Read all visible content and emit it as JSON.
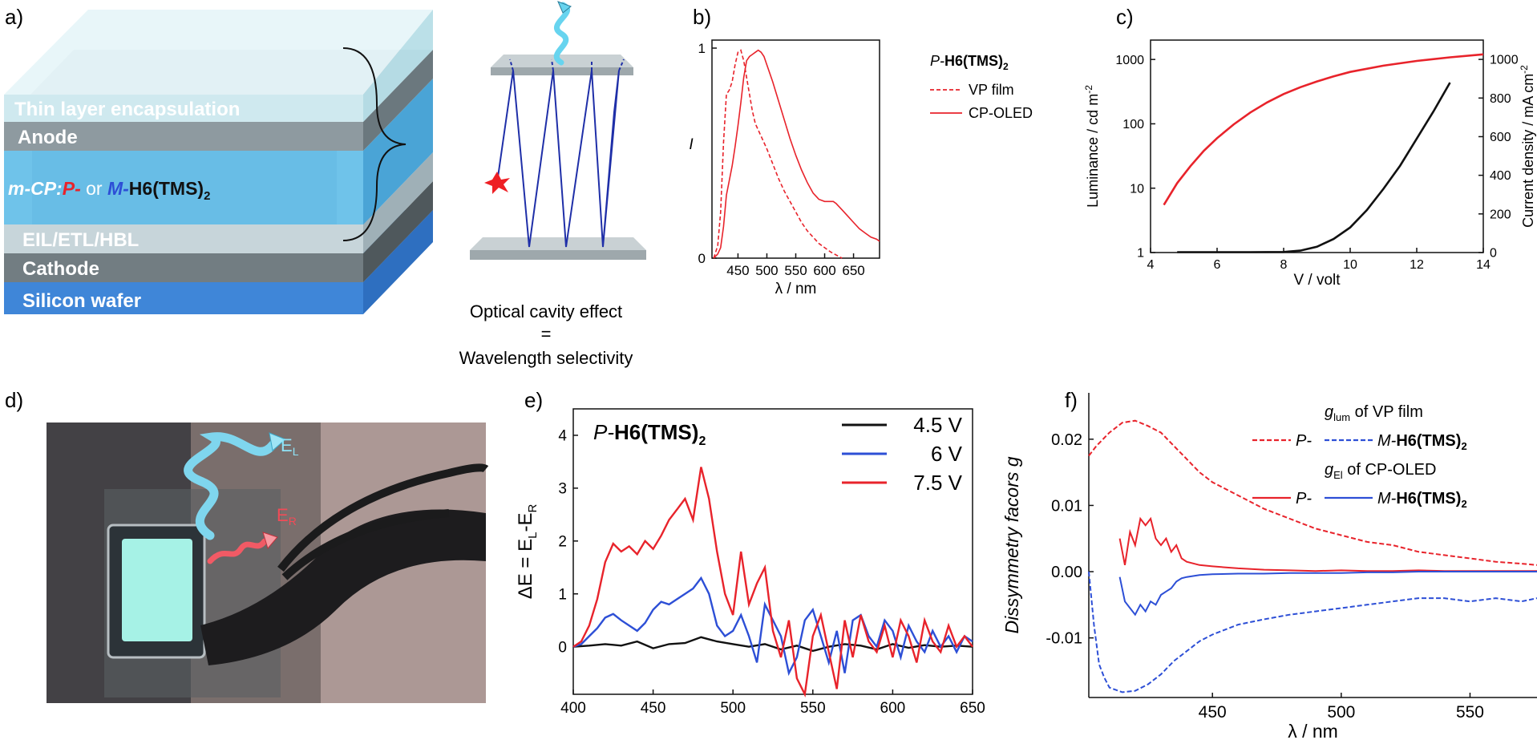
{
  "panel_labels": [
    "a)",
    "b)",
    "c)",
    "d)",
    "e)",
    "f)"
  ],
  "panel_a": {
    "layers": [
      {
        "label": "Thin layer encapsulation",
        "color": "#cfe9ef"
      },
      {
        "label": "Anode",
        "color": "#8e9aa0"
      },
      {
        "label": "m-CP:P- or M-H6(TMS)2",
        "color": "#6fc3ea"
      },
      {
        "label": "EIL/ETL/HBL",
        "color": "#c7d5da"
      },
      {
        "label": "Cathode",
        "color": "#727d82"
      },
      {
        "label": "Silicon wafer",
        "color": "#3f86d8"
      }
    ],
    "emitter": {
      "prefix": "m-CP:",
      "p": "P-",
      "or": " or ",
      "m": "M-",
      "name": "H6(TMS)",
      "sub": "2"
    },
    "caption_line1": "Optical cavity effect",
    "caption_line2": "=",
    "caption_line3": "Wavelength selectivity"
  },
  "panel_d": {
    "el_label": "E",
    "el_sub": "L",
    "er_label": "E",
    "er_sub": "R"
  },
  "colors": {
    "red": "#e8232b",
    "blue": "#2d4fd6",
    "black": "#111111",
    "cyan": "#67d4ef"
  },
  "chart_data": [
    {
      "panel": "b",
      "type": "line",
      "xlabel": "λ / nm",
      "ylabel": "I",
      "xlim": [
        405,
        695
      ],
      "ylim": [
        0,
        1
      ],
      "xticks": [
        450,
        500,
        550,
        600,
        650
      ],
      "yticks": [
        0,
        1
      ],
      "legend": {
        "title_prefix": "P-",
        "title_main": "H6(TMS)",
        "title_sub": "2",
        "placement": "top-right"
      },
      "series": [
        {
          "name": "VP film",
          "style": "dashed",
          "color": "#e8232b",
          "x": [
            408,
            415,
            420,
            425,
            430,
            435,
            440,
            445,
            450,
            455,
            460,
            465,
            470,
            475,
            480,
            490,
            500,
            510,
            520,
            530,
            540,
            550,
            560,
            570,
            580,
            590,
            600,
            610,
            620,
            630
          ],
          "y": [
            0,
            0.06,
            0.22,
            0.55,
            0.78,
            0.8,
            0.84,
            0.92,
            0.98,
            0.99,
            0.94,
            0.86,
            0.78,
            0.7,
            0.64,
            0.58,
            0.52,
            0.45,
            0.38,
            0.32,
            0.27,
            0.22,
            0.17,
            0.13,
            0.1,
            0.07,
            0.05,
            0.03,
            0.015,
            0
          ]
        },
        {
          "name": "CP-OLED",
          "style": "solid",
          "color": "#e8232b",
          "x": [
            408,
            415,
            420,
            425,
            430,
            435,
            440,
            445,
            450,
            455,
            460,
            465,
            470,
            475,
            480,
            485,
            490,
            495,
            500,
            510,
            520,
            530,
            540,
            550,
            560,
            570,
            580,
            590,
            600,
            610,
            615,
            620,
            630,
            640,
            650,
            660,
            670,
            680,
            690,
            695
          ],
          "y": [
            0,
            0.02,
            0.05,
            0.15,
            0.3,
            0.37,
            0.44,
            0.53,
            0.63,
            0.74,
            0.86,
            0.94,
            0.96,
            0.97,
            0.98,
            0.99,
            0.98,
            0.96,
            0.92,
            0.84,
            0.75,
            0.66,
            0.57,
            0.49,
            0.42,
            0.36,
            0.31,
            0.28,
            0.27,
            0.27,
            0.27,
            0.26,
            0.23,
            0.2,
            0.17,
            0.14,
            0.12,
            0.1,
            0.09,
            0.08
          ]
        }
      ]
    },
    {
      "panel": "c",
      "type": "line",
      "xlabel": "V / volt",
      "ylabel_left": "Luminance / cd m",
      "ylabel_left_sup": "-2",
      "ylabel_right": "Current density / mA cm",
      "ylabel_right_sup": "-2",
      "xlim": [
        4,
        14
      ],
      "ylim_left": [
        1,
        2000
      ],
      "yscale_left": "log",
      "ylim_right": [
        0,
        1100
      ],
      "xticks": [
        4,
        6,
        8,
        10,
        12,
        14
      ],
      "yticks_left": [
        1,
        10,
        100,
        1000
      ],
      "yticks_right": [
        0,
        200,
        400,
        600,
        800,
        1000
      ],
      "series": [
        {
          "name": "Luminance",
          "axis": "left",
          "color": "#e8232b",
          "x": [
            4.4,
            4.8,
            5.2,
            5.6,
            6,
            6.5,
            7,
            7.5,
            8,
            8.5,
            9,
            9.5,
            10,
            11,
            12,
            13,
            14
          ],
          "y": [
            5.5,
            12,
            22,
            38,
            60,
            98,
            150,
            215,
            290,
            370,
            455,
            545,
            640,
            800,
            950,
            1080,
            1200
          ]
        },
        {
          "name": "Current density",
          "axis": "right",
          "color": "#111111",
          "x": [
            4.8,
            6,
            7,
            8,
            8.5,
            9,
            9.5,
            10,
            10.5,
            11,
            11.5,
            12,
            12.5,
            13
          ],
          "y": [
            2,
            2,
            2,
            3,
            10,
            30,
            70,
            130,
            220,
            330,
            450,
            590,
            730,
            880
          ]
        }
      ]
    },
    {
      "panel": "e",
      "type": "line",
      "xlabel": "",
      "ylabel": "ΔE = E_L - E_R",
      "xlim": [
        400,
        650
      ],
      "ylim": [
        -0.9,
        4.5
      ],
      "xticks": [
        400,
        450,
        500,
        550,
        600,
        650
      ],
      "yticks": [
        0,
        1,
        2,
        3,
        4
      ],
      "title_prefix": "P-",
      "title_main": "H6(TMS)",
      "title_sub": "2",
      "legend_placement": "top-right",
      "series": [
        {
          "name": "4.5 V",
          "color": "#111111",
          "x": [
            400,
            410,
            420,
            430,
            440,
            450,
            460,
            470,
            480,
            490,
            500,
            510,
            520,
            530,
            540,
            550,
            560,
            570,
            580,
            590,
            600,
            610,
            620,
            630,
            640,
            650
          ],
          "y": [
            0,
            0.02,
            0.05,
            0.02,
            0.1,
            -0.03,
            0.05,
            0.07,
            0.18,
            0.1,
            0.05,
            0.0,
            0.05,
            -0.05,
            0.02,
            -0.08,
            0.0,
            0.05,
            0.02,
            -0.05,
            0.05,
            -0.02,
            0.03,
            0.0,
            0.02,
            0.0
          ]
        },
        {
          "name": "6 V",
          "color": "#2d4fd6",
          "x": [
            400,
            405,
            410,
            415,
            420,
            425,
            430,
            435,
            440,
            445,
            450,
            455,
            460,
            465,
            470,
            475,
            480,
            485,
            490,
            495,
            500,
            505,
            510,
            515,
            520,
            525,
            530,
            535,
            540,
            545,
            550,
            555,
            560,
            565,
            570,
            575,
            580,
            585,
            590,
            595,
            600,
            605,
            610,
            615,
            620,
            625,
            630,
            635,
            640,
            645,
            650
          ],
          "y": [
            0,
            0.05,
            0.2,
            0.35,
            0.55,
            0.62,
            0.5,
            0.4,
            0.3,
            0.45,
            0.7,
            0.85,
            0.8,
            0.9,
            1.0,
            1.1,
            1.3,
            1.0,
            0.4,
            0.2,
            0.3,
            0.6,
            0.2,
            -0.3,
            0.8,
            0.5,
            0.2,
            -0.5,
            -0.2,
            0.5,
            0.7,
            0.2,
            -0.3,
            0.3,
            -0.5,
            0.5,
            0.6,
            0.2,
            0.0,
            0.5,
            0.3,
            -0.2,
            0.4,
            0.1,
            -0.1,
            0.3,
            0.0,
            0.2,
            -0.1,
            0.2,
            0.1
          ]
        },
        {
          "name": "7.5 V",
          "color": "#e8232b",
          "x": [
            400,
            405,
            410,
            415,
            420,
            425,
            430,
            435,
            440,
            445,
            450,
            455,
            460,
            465,
            470,
            475,
            480,
            485,
            490,
            495,
            500,
            505,
            510,
            515,
            520,
            525,
            530,
            535,
            540,
            545,
            550,
            555,
            560,
            565,
            570,
            575,
            580,
            585,
            590,
            595,
            600,
            605,
            610,
            615,
            620,
            625,
            630,
            635,
            640,
            645,
            650
          ],
          "y": [
            0,
            0.1,
            0.4,
            0.9,
            1.6,
            1.95,
            1.8,
            1.9,
            1.75,
            2.0,
            1.85,
            2.1,
            2.4,
            2.6,
            2.8,
            2.4,
            3.4,
            2.8,
            1.8,
            1.0,
            0.6,
            1.8,
            0.8,
            1.2,
            1.5,
            0.3,
            -0.2,
            0.5,
            -0.6,
            -0.9,
            0.2,
            0.6,
            -0.1,
            -0.8,
            0.5,
            -0.2,
            0.6,
            0.1,
            -0.1,
            0.4,
            -0.2,
            0.5,
            0.2,
            -0.3,
            0.5,
            0.1,
            -0.1,
            0.4,
            0.0,
            0.2,
            0.0
          ]
        }
      ]
    },
    {
      "panel": "f",
      "type": "line",
      "xlabel": "λ / nm",
      "ylabel": "Dissymmetry facors g",
      "xlim": [
        402,
        576
      ],
      "ylim": [
        -0.019,
        0.027
      ],
      "xticks": [
        450,
        500,
        550
      ],
      "yticks": [
        -0.01,
        0.0,
        0.01,
        0.02
      ],
      "ytick_labels": [
        "-0.01",
        "0.00",
        "0.01",
        "0.02"
      ],
      "legend": {
        "group1_g": "g",
        "group1_sub": "lum",
        "group1_rest": " of VP film",
        "group2_g": "g",
        "group2_sub": "El",
        "group2_rest": " of CP-OLED",
        "p_label": "P-",
        "m_label": "M-",
        "m_name": "H6(TMS)",
        "m_sub": "2",
        "placement": "top-right"
      },
      "series": [
        {
          "name": "glum VP film P-",
          "style": "dashed",
          "color": "#e8232b",
          "x": [
            402,
            405,
            410,
            415,
            420,
            425,
            430,
            435,
            440,
            445,
            450,
            460,
            470,
            480,
            490,
            500,
            510,
            520,
            530,
            540,
            550,
            560,
            570,
            576
          ],
          "y": [
            0.0175,
            0.019,
            0.021,
            0.0225,
            0.0228,
            0.022,
            0.021,
            0.019,
            0.017,
            0.015,
            0.0135,
            0.0115,
            0.0095,
            0.008,
            0.0065,
            0.0055,
            0.0045,
            0.004,
            0.003,
            0.0025,
            0.002,
            0.0015,
            0.0012,
            0.001
          ]
        },
        {
          "name": "glum VP film M-",
          "style": "dashed",
          "color": "#2d4fd6",
          "x": [
            402,
            404,
            406,
            408,
            410,
            415,
            420,
            425,
            430,
            435,
            440,
            445,
            450,
            460,
            470,
            480,
            490,
            500,
            510,
            520,
            530,
            540,
            550,
            560,
            570,
            576
          ],
          "y": [
            0.0,
            -0.008,
            -0.014,
            -0.016,
            -0.0175,
            -0.0182,
            -0.018,
            -0.017,
            -0.0155,
            -0.0135,
            -0.012,
            -0.0105,
            -0.0095,
            -0.008,
            -0.0072,
            -0.0065,
            -0.006,
            -0.0055,
            -0.005,
            -0.0045,
            -0.004,
            -0.004,
            -0.0045,
            -0.004,
            -0.0045,
            -0.004
          ]
        },
        {
          "name": "gEl CP-OLED P-",
          "style": "solid",
          "color": "#e8232b",
          "x": [
            414,
            416,
            418,
            420,
            422,
            424,
            426,
            428,
            430,
            432,
            434,
            436,
            438,
            440,
            445,
            450,
            460,
            470,
            480,
            490,
            500,
            510,
            520,
            530,
            540,
            550,
            560,
            570,
            576
          ],
          "y": [
            0.005,
            0.001,
            0.006,
            0.004,
            0.008,
            0.007,
            0.008,
            0.005,
            0.004,
            0.005,
            0.003,
            0.004,
            0.002,
            0.0015,
            0.001,
            0.0008,
            0.0005,
            0.0003,
            0.0002,
            0.0001,
            0.0002,
            0.0001,
            0.0001,
            0.0002,
            0.0001,
            0.0001,
            0.0001,
            0.0001,
            0.0001
          ]
        },
        {
          "name": "gEl CP-OLED M-",
          "style": "solid",
          "color": "#2d4fd6",
          "x": [
            414,
            416,
            418,
            420,
            422,
            424,
            426,
            428,
            430,
            432,
            434,
            436,
            438,
            440,
            445,
            450,
            460,
            470,
            480,
            490,
            500,
            510,
            520,
            530,
            540,
            550,
            560,
            570,
            576
          ],
          "y": [
            -0.0008,
            -0.0045,
            -0.0055,
            -0.0065,
            -0.005,
            -0.006,
            -0.0045,
            -0.005,
            -0.0035,
            -0.003,
            -0.0025,
            -0.0015,
            -0.001,
            -0.0008,
            -0.0005,
            -0.0004,
            -0.0003,
            -0.0003,
            -0.0002,
            -0.0002,
            -0.0002,
            -0.0001,
            -0.0001,
            0.0,
            0.0,
            0.0,
            0.0,
            0.0,
            0.0
          ]
        }
      ]
    }
  ]
}
